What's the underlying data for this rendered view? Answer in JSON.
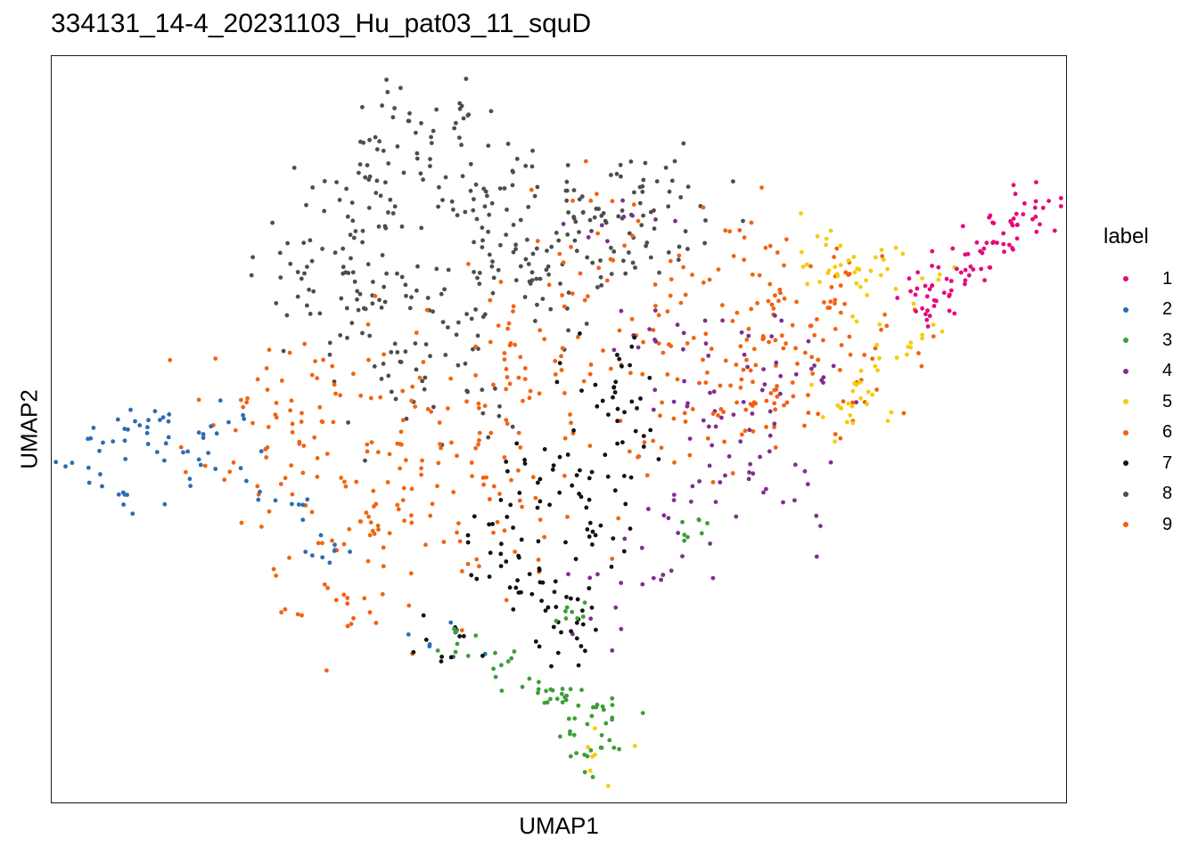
{
  "chart_data": {
    "type": "scatter",
    "title": "334131_14-4_20231103_Hu_pat03_11_squD",
    "xlabel": "UMAP1",
    "ylabel": "UMAP2",
    "xlim": [
      0,
      100
    ],
    "ylim": [
      0,
      100
    ],
    "axis_ticks": "none",
    "grid": false,
    "legend": {
      "title": "label",
      "placement": "right",
      "entries": [
        {
          "label": "1",
          "color": "#e7087a"
        },
        {
          "label": "2",
          "color": "#2b6db2"
        },
        {
          "label": "3",
          "color": "#3d9e37"
        },
        {
          "label": "4",
          "color": "#7f2f8f"
        },
        {
          "label": "5",
          "color": "#f5cc08"
        },
        {
          "label": "6",
          "color": "#f06412"
        },
        {
          "label": "7",
          "color": "#111111"
        },
        {
          "label": "8",
          "color": "#4d4d4d"
        },
        {
          "label": "9",
          "color": "#fc5a0a"
        }
      ]
    },
    "clusters": [
      {
        "label": "1",
        "color": "#e7087a",
        "n": 90,
        "center": [
          91.5,
          73.0
        ],
        "spread": [
          3.0,
          3.0
        ],
        "anchors": [
          [
            96.5,
            79.5
          ],
          [
            94.8,
            77.0
          ],
          [
            92.5,
            74.5
          ],
          [
            89.5,
            71.5
          ],
          [
            87.5,
            69.0
          ],
          [
            85.8,
            67.5
          ]
        ]
      },
      {
        "label": "2",
        "color": "#2b6db2",
        "n": 85,
        "center": [
          10.5,
          46.5
        ],
        "spread": [
          4.0,
          3.0
        ],
        "anchors": [
          [
            5.0,
            45.5
          ],
          [
            7.0,
            49.0
          ],
          [
            10.0,
            50.5
          ],
          [
            13.0,
            48.5
          ],
          [
            16.0,
            45.0
          ],
          [
            7.5,
            41.5
          ],
          [
            18.5,
            52.5
          ],
          [
            24.0,
            38.5
          ],
          [
            27.5,
            33.0
          ],
          [
            38.5,
            22.0
          ]
        ]
      },
      {
        "label": "3",
        "color": "#3d9e37",
        "n": 85,
        "center": [
          50.5,
          14.0
        ],
        "spread": [
          2.0,
          3.0
        ],
        "anchors": [
          [
            45.5,
            18.5
          ],
          [
            48.0,
            16.0
          ],
          [
            50.0,
            13.5
          ],
          [
            51.5,
            11.0
          ],
          [
            53.0,
            8.5
          ],
          [
            53.5,
            6.0
          ],
          [
            55.0,
            12.0
          ],
          [
            52.0,
            25.0
          ],
          [
            63.5,
            37.5
          ],
          [
            40.0,
            21.5
          ]
        ]
      },
      {
        "label": "4",
        "color": "#7f2f8f",
        "n": 120,
        "center": [
          64.0,
          44.0
        ],
        "spread": [
          5.0,
          5.0
        ],
        "anchors": [
          [
            55.0,
            77.5
          ],
          [
            60.0,
            63.0
          ],
          [
            63.0,
            56.0
          ],
          [
            65.0,
            50.0
          ],
          [
            66.0,
            44.0
          ],
          [
            62.0,
            38.0
          ],
          [
            58.0,
            33.0
          ],
          [
            55.0,
            27.0
          ],
          [
            68.0,
            45.0
          ],
          [
            72.0,
            42.0
          ],
          [
            70.0,
            53.0
          ],
          [
            75.5,
            55.0
          ],
          [
            73.0,
            60.0
          ],
          [
            67.0,
            62.0
          ]
        ]
      },
      {
        "label": "5",
        "color": "#f5cc08",
        "n": 85,
        "center": [
          80.0,
          67.0
        ],
        "spread": [
          3.5,
          3.5
        ],
        "anchors": [
          [
            75.0,
            74.5
          ],
          [
            77.5,
            72.0
          ],
          [
            79.5,
            70.0
          ],
          [
            82.0,
            72.5
          ],
          [
            85.5,
            70.0
          ],
          [
            84.0,
            63.0
          ],
          [
            83.0,
            60.0
          ],
          [
            81.5,
            55.5
          ],
          [
            78.5,
            54.0
          ],
          [
            77.0,
            52.5
          ],
          [
            54.5,
            5.5
          ]
        ]
      },
      {
        "label": "6",
        "color": "#f06412",
        "n": 430,
        "center": [
          38.0,
          52.0
        ],
        "spread": [
          10.0,
          10.0
        ],
        "anchors": [
          [
            30.0,
            49.0
          ],
          [
            33.0,
            45.0
          ],
          [
            28.0,
            58.0
          ],
          [
            36.0,
            40.0
          ],
          [
            42.0,
            57.0
          ],
          [
            47.0,
            56.0
          ],
          [
            45.0,
            62.0
          ],
          [
            56.0,
            65.0
          ],
          [
            62.0,
            66.0
          ],
          [
            70.0,
            71.0
          ],
          [
            74.0,
            66.0
          ],
          [
            78.0,
            60.0
          ],
          [
            72.0,
            58.0
          ],
          [
            66.0,
            55.0
          ],
          [
            30.0,
            32.0
          ],
          [
            26.0,
            37.0
          ],
          [
            42.0,
            34.0
          ],
          [
            48.0,
            45.0
          ],
          [
            52.0,
            49.0
          ],
          [
            24.0,
            50.0
          ],
          [
            22.0,
            45.5
          ],
          [
            20.0,
            55.0
          ],
          [
            53.0,
            73.5
          ],
          [
            76.0,
            63.0
          ],
          [
            68.0,
            63.0
          ]
        ]
      },
      {
        "label": "7",
        "color": "#111111",
        "n": 150,
        "center": [
          49.0,
          38.0
        ],
        "spread": [
          4.0,
          5.0
        ],
        "anchors": [
          [
            53.5,
            46.5
          ],
          [
            53.0,
            41.5
          ],
          [
            54.5,
            36.0
          ],
          [
            53.5,
            55.0
          ],
          [
            47.5,
            46.0
          ],
          [
            45.0,
            38.5
          ],
          [
            44.0,
            33.0
          ],
          [
            47.5,
            30.0
          ],
          [
            51.0,
            27.5
          ],
          [
            52.5,
            22.5
          ],
          [
            49.0,
            24.5
          ],
          [
            38.5,
            22.0
          ],
          [
            55.5,
            58.0
          ],
          [
            56.5,
            49.5
          ]
        ]
      },
      {
        "label": "8",
        "color": "#4d4d4d",
        "n": 380,
        "center": [
          35.0,
          73.0
        ],
        "spread": [
          7.0,
          7.0
        ],
        "anchors": [
          [
            30.0,
            80.0
          ],
          [
            34.0,
            86.0
          ],
          [
            37.0,
            91.5
          ],
          [
            40.0,
            84.0
          ],
          [
            45.0,
            82.0
          ],
          [
            47.0,
            76.0
          ],
          [
            28.0,
            72.0
          ],
          [
            32.0,
            66.0
          ],
          [
            36.0,
            60.0
          ],
          [
            41.0,
            68.0
          ],
          [
            49.5,
            69.0
          ],
          [
            26.0,
            68.0
          ],
          [
            55.0,
            78.0
          ],
          [
            53.0,
            73.0
          ],
          [
            57.0,
            80.0
          ],
          [
            60.0,
            78.5
          ],
          [
            39.0,
            54.5
          ]
        ]
      },
      {
        "label": "9",
        "color": "#fc5a0a",
        "n": 70,
        "center": [
          60.0,
          55.0
        ],
        "spread": [
          5.0,
          3.0
        ],
        "anchors": [
          [
            29.0,
            26.5
          ],
          [
            29.5,
            25.0
          ],
          [
            61.0,
            50.0
          ],
          [
            65.5,
            49.0
          ],
          [
            69.0,
            52.0
          ],
          [
            72.0,
            54.0
          ],
          [
            74.5,
            51.0
          ],
          [
            79.0,
            52.5
          ],
          [
            78.0,
            70.0
          ],
          [
            74.0,
            68.0
          ],
          [
            76.0,
            63.0
          ],
          [
            49.0,
            59.0
          ],
          [
            41.5,
            41.0
          ],
          [
            68.0,
            58.0
          ]
        ]
      }
    ]
  }
}
